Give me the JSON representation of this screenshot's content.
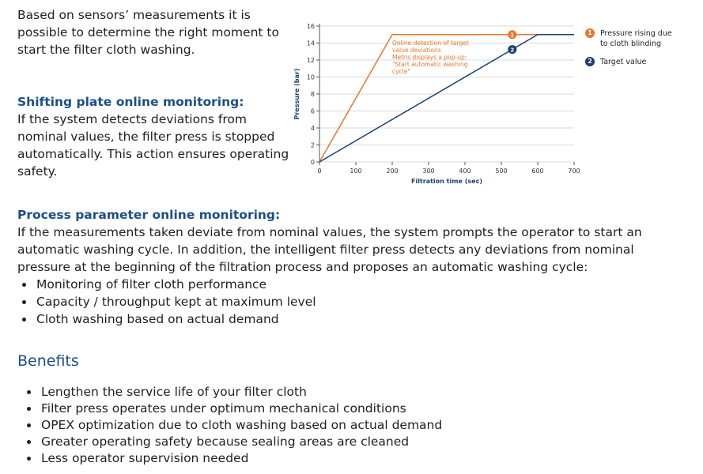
{
  "intro": "Based on sensors’ measurements it is possible to determine the right moment to start the filter cloth washing.",
  "sections": [
    {
      "heading": "Shifting plate online monitoring:",
      "text": "If the system detects deviations from nominal values, the filter press is stopped automatically. This action ensures operating safety."
    },
    {
      "heading": "Process parameter online monitoring:",
      "text": "If the measurements taken deviate from nominal values, the system prompts the operator to start an automatic washing cycle. In addition, the intelligent filter press detects any deviations from nominal pressure at the beginning of the filtration process and proposes an automatic washing cycle:",
      "bullets": [
        "Monitoring of filter cloth performance",
        "Capacity / throughput kept at maximum level",
        "Cloth washing based on actual demand"
      ]
    }
  ],
  "benefits": {
    "heading": "Benefits",
    "bullets": [
      "Lengthen the service life of your filter cloth",
      "Filter press operates under optimum mechanical conditions",
      "OPEX optimization due to cloth washing based on actual demand",
      "Greater operating safety because sealing areas are cleaned",
      "Less operator supervision needed"
    ]
  },
  "chart_data": {
    "type": "line",
    "x_label": "Filtration time (sec)",
    "y_label": "Pressure (bar)",
    "xlim": [
      0,
      700
    ],
    "ylim": [
      0,
      16
    ],
    "xticks": [
      0,
      100,
      200,
      300,
      400,
      500,
      600,
      700
    ],
    "yticks": [
      0,
      2,
      4,
      6,
      8,
      10,
      12,
      14,
      16
    ],
    "grid": true,
    "annotation": [
      "Online detection of target",
      "value deviations",
      "Metris displays a pop-up:",
      "\"Start automatic washing",
      "cycle\""
    ],
    "series": [
      {
        "name": "Pressure rising due to cloth blinding",
        "color": "#e8772e",
        "x": [
          0,
          200,
          700
        ],
        "values": [
          0,
          15,
          15
        ],
        "marker": {
          "label": "1",
          "x": 530,
          "y": 15
        }
      },
      {
        "name": "Target value",
        "color": "#1c3f6e",
        "x": [
          0,
          600,
          700
        ],
        "values": [
          0,
          15,
          15
        ],
        "marker": {
          "label": "2",
          "x": 530,
          "y": 13.25
        }
      }
    ]
  }
}
